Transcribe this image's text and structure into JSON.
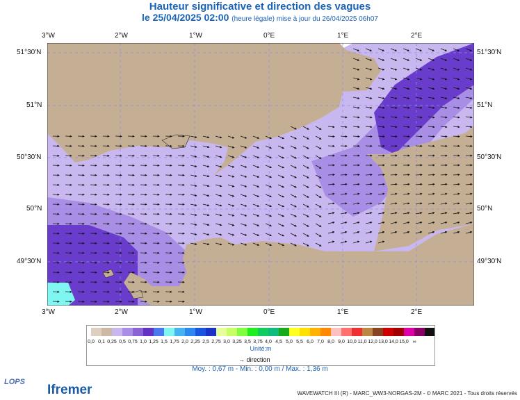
{
  "title": "Hauteur significative et direction des vagues",
  "subtitle_main": "le 25/04/2025 02:00",
  "subtitle_note": "(heure légale) mise à jour du 26/04/2025 06h07",
  "x_ticks": [
    "3°W",
    "2°W",
    "1°W",
    "0°E",
    "1°E",
    "2°E"
  ],
  "y_ticks": [
    "51°30'N",
    "51°N",
    "50°30'N",
    "50°N",
    "49°30'N"
  ],
  "legend": {
    "colors": [
      "#ddd0c0",
      "#cdb8a4",
      "#c9b8ef",
      "#a98ee5",
      "#8a64d6",
      "#6232c4",
      "#4a7af0",
      "#7ff6f2",
      "#46b4f0",
      "#2d88ef",
      "#1a55e0",
      "#1a32c8",
      "#e6ff9a",
      "#c8ff64",
      "#80ff40",
      "#20ee20",
      "#12cc60",
      "#10bb80",
      "#18aa18",
      "#ffff20",
      "#ffe000",
      "#ffb300",
      "#ff8800",
      "#ffc0c0",
      "#ff7070",
      "#ee3030",
      "#bb8844",
      "#884422",
      "#cc0000",
      "#a00000",
      "#dd00aa",
      "#880066",
      "#111111"
    ],
    "labels": [
      "0,0",
      "0,1",
      "0,25",
      "0,5",
      "0,75",
      "1,0",
      "1,25",
      "1,5",
      "1,75",
      "2,0",
      "2,25",
      "2,5",
      "2,75",
      "3,0",
      "3,25",
      "3,5",
      "3,75",
      "4,0",
      "4,5",
      "5,0",
      "5,5",
      "6,0",
      "7,0",
      "8,0",
      "9,0",
      "10,0",
      "11,0",
      "12,0",
      "13,0",
      "14,0",
      "15,0",
      "∞"
    ],
    "unit": "Unité:m",
    "direction": "direction"
  },
  "stats": "Moy. : 0,67 m  -  Min. : 0,00 m / Max. : 1,36 m",
  "footer": "WAVEWATCH III (R) - MARC_WW3-NORGAS-2M - © MARC 2021 - Tous droits réservés",
  "logos": {
    "lops": "LOPS",
    "ifremer": "Ifremer"
  },
  "colors": {
    "land": "#c5af94",
    "sea_light": "#c9b8ef",
    "sea_mid": "#a98ee5",
    "sea_dark": "#6a3ccc",
    "sea_cyan": "#7ff6f2",
    "title": "#1a63b4"
  }
}
